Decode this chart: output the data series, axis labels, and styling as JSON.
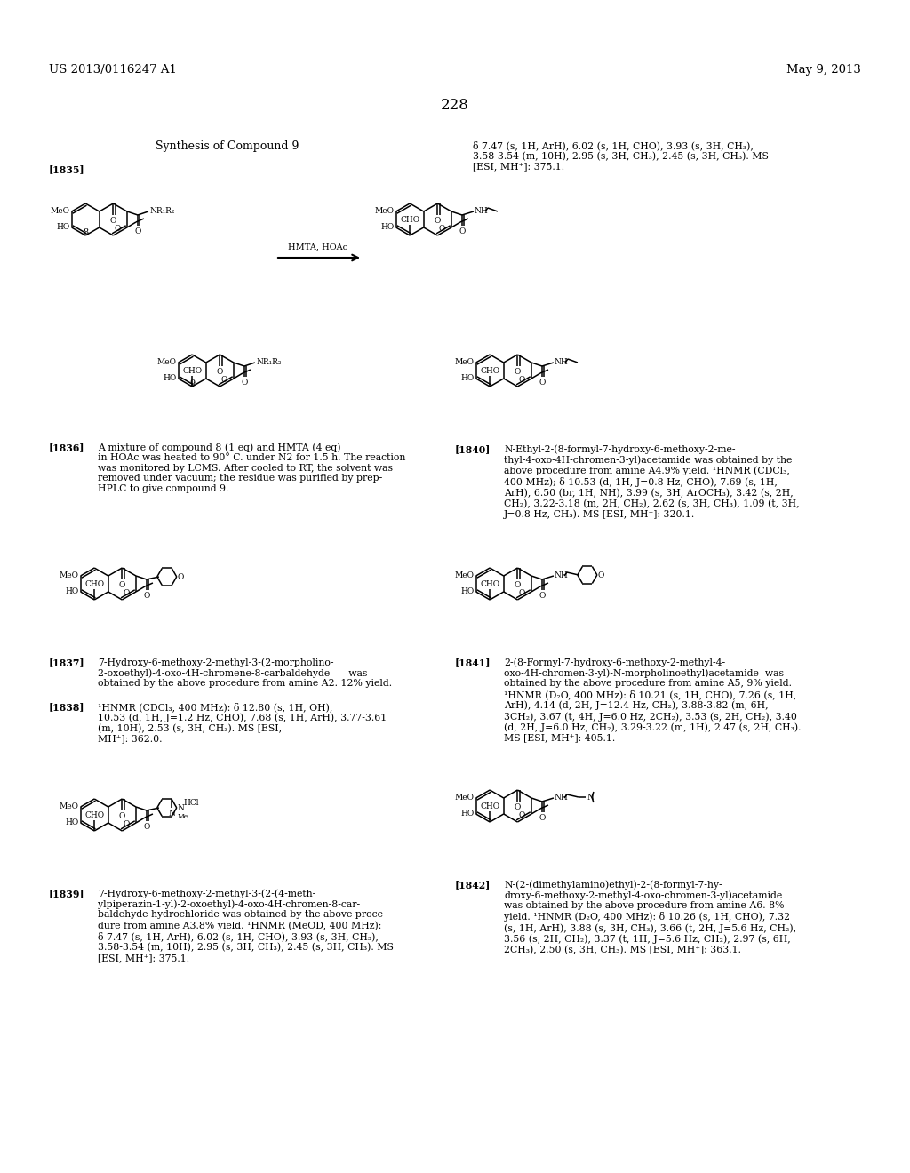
{
  "bg_color": "#ffffff",
  "header_left": "US 2013/0116247 A1",
  "header_right": "May 9, 2013",
  "page_number": "228",
  "title": "Synthesis of Compound 9",
  "text_color": "#000000",
  "font_size_header": 9.5,
  "font_size_body": 7.8,
  "font_size_page": 12,
  "font_size_title": 9,
  "font_size_struct_label": 7,
  "text_1835_right": "δ 7.47 (s, 1H, ArH), 6.02 (s, 1H, CHO), 3.93 (s, 3H, CH₃),\n3.58-3.54 (m, 10H), 2.95 (s, 3H, CH₃), 2.45 (s, 3H, CH₃). MS\n[ESI, MH⁺]: 375.1.",
  "text_1836": "A mixture of compound 8 (1 eq) and HMTA (4 eq)\nin HOAc was heated to 90° C. under N2 for 1.5 h. The reaction\nwas monitored by LCMS. After cooled to RT, the solvent was\nremoved under vacuum; the residue was purified by prep-\nHPLC to give compound 9.",
  "text_1837_title": "7-Hydroxy-6-methoxy-2-methyl-3-(2-morpholino-\n2-oxoethyl)-4-oxo-4H-chromene-8-carbaldehyde      was\nobtained by the above procedure from amine A2. 12% yield.",
  "text_1838": "¹HNMR (CDCl₃, 400 MHz): δ 12.80 (s, 1H, OH),\n10.53 (d, 1H, J=1.2 Hz, CHO), 7.68 (s, 1H, ArH), 3.77-3.61\n(m, 10H), 2.53 (s, 3H, CH₃). MS [ESI,\nMH⁺]: 362.0.",
  "text_1839": "7-Hydroxy-6-methoxy-2-methyl-3-(2-(4-meth-\nylpiperazin-1-yl)-2-oxoethyl)-4-oxo-4H-chromen-8-car-\nbaldehyde hydrochloride was obtained by the above proce-\ndure from amine A3.8% yield. ¹HNMR (MeOD, 400 MHz):\nδ 7.47 (s, 1H, ArH), 6.02 (s, 1H, CHO), 3.93 (s, 3H, CH₃),\n3.58-3.54 (m, 10H), 2.95 (s, 3H, CH₃), 2.45 (s, 3H, CH₃). MS\n[ESI, MH⁺]: 375.1.",
  "text_1840": "N-Ethyl-2-(8-formyl-7-hydroxy-6-methoxy-2-me-\nthyl-4-oxo-4H-chromen-3-yl)acetamide was obtained by the\nabove procedure from amine A4.9% yield. ¹HNMR (CDCl₃,\n400 MHz); δ 10.53 (d, 1H, J=0.8 Hz, CHO), 7.69 (s, 1H,\nArH), 6.50 (br, 1H, NH), 3.99 (s, 3H, ArOCH₃), 3.42 (s, 2H,\nCH₂), 3.22-3.18 (m, 2H, CH₂), 2.62 (s, 3H, CH₃), 1.09 (t, 3H,\nJ=0.8 Hz, CH₃). MS [ESI, MH⁺]: 320.1.",
  "text_1841": "2-(8-Formyl-7-hydroxy-6-methoxy-2-methyl-4-\noxo-4H-chromen-3-yl)-N-morpholinoethyl)acetamide  was\nobtained by the above procedure from amine A5, 9% yield.\n¹HNMR (D₂O, 400 MHz): δ 10.21 (s, 1H, CHO), 7.26 (s, 1H,\nArH), 4.14 (d, 2H, J=12.4 Hz, CH₂), 3.88-3.82 (m, 6H,\n3CH₂), 3.67 (t, 4H, J=6.0 Hz, 2CH₂), 3.53 (s, 2H, CH₂), 3.40\n(d, 2H, J=6.0 Hz, CH₂), 3.29-3.22 (m, 1H), 2.47 (s, 2H, CH₃).\nMS [ESI, MH⁺]: 405.1.",
  "text_1842": "N-(2-(dimethylamino)ethyl)-2-(8-formyl-7-hy-\ndroxy-6-methoxy-2-methyl-4-oxo-chromen-3-yl)acetamide\nwas obtained by the above procedure from amine A6. 8%\nyield. ¹HNMR (D₂O, 400 MHz): δ 10.26 (s, 1H, CHO), 7.32\n(s, 1H, ArH), 3.88 (s, 3H, CH₃), 3.66 (t, 2H, J=5.6 Hz, CH₂),\n3.56 (s, 2H, CH₂), 3.37 (t, 1H, J=5.6 Hz, CH₂), 2.97 (s, 6H,\n2CH₃), 2.50 (s, 3H, CH₃). MS [ESI, MH⁺]: 363.1."
}
